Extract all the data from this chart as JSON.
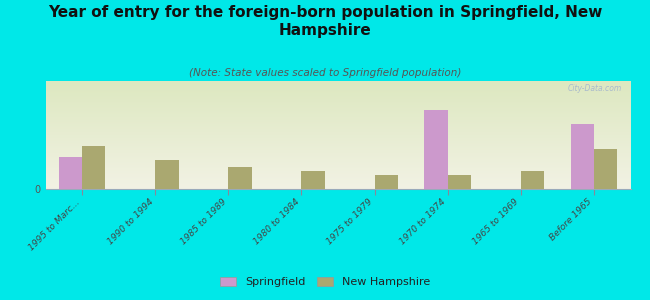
{
  "title": "Year of entry for the foreign-born population in Springfield, New\nHampshire",
  "subtitle": "(Note: State values scaled to Springfield population)",
  "background_color": "#00e8e8",
  "plot_bg_top": "#dde8c0",
  "plot_bg_bottom": "#f0f0e0",
  "categories": [
    "1995 to Marc...",
    "1990 to 1994",
    "1985 to 1989",
    "1980 to 1984",
    "1975 to 1979",
    "1970 to 1974",
    "1965 to 1969",
    "Before 1965"
  ],
  "springfield_values": [
    9,
    0,
    0,
    0,
    0,
    22,
    0,
    18
  ],
  "nh_values": [
    12,
    8,
    6,
    5,
    4,
    4,
    5,
    11
  ],
  "springfield_color": "#cc99cc",
  "nh_color": "#aaa870",
  "bar_width": 0.32,
  "ylim_max": 30,
  "watermark": "City-Data.com",
  "legend_labels": [
    "Springfield",
    "New Hampshire"
  ],
  "title_fontsize": 11,
  "subtitle_fontsize": 7.5,
  "tick_fontsize": 6.5
}
